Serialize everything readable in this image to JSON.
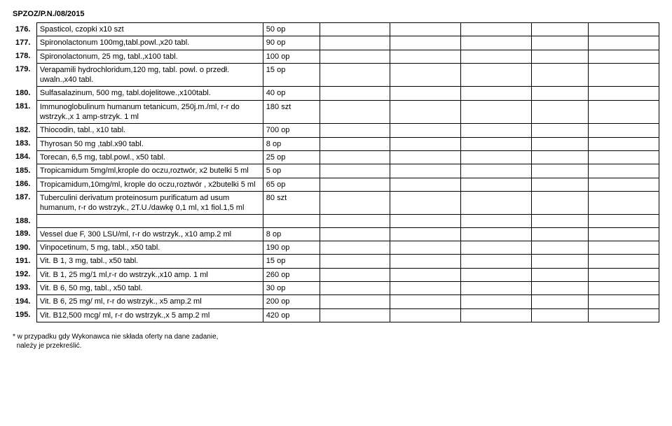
{
  "header": "SPZOZ/P.N./08/2015",
  "footnote_l1": "* w przypadku gdy Wykonawca nie składa oferty na dane zadanie,",
  "footnote_l2": "należy je przekreślić.",
  "rows": [
    {
      "num": "176.",
      "desc": "Spasticol, czopki x10 szt",
      "qty": "50 op"
    },
    {
      "num": "177.",
      "desc": "Spironolactonum 100mg,tabl.powl.,x20 tabl.",
      "qty": "90 op"
    },
    {
      "num": "178.",
      "desc": "Spironolactonum, 25 mg, tabl.,x100 tabl.",
      "qty": "100 op"
    },
    {
      "num": "179.",
      "desc": "Verapamili hydrochloridum,120 mg, tabl. powl. o przedł. uwaln.,x40 tabl.",
      "qty": "15 op"
    },
    {
      "num": "180.",
      "desc": "Sulfasalazinum, 500 mg, tabl.dojelitowe.,x100tabl.",
      "qty": "40 op"
    },
    {
      "num": "181.",
      "desc": "Immunoglobulinum humanum tetanicum, 250j.m./ml, r-r do wstrzyk.,x 1 amp-strzyk. 1 ml",
      "qty": "180 szt"
    },
    {
      "num": "182.",
      "desc": "Thiocodin, tabl., x10 tabl.",
      "qty": "700 op"
    },
    {
      "num": "183.",
      "desc": "Thyrosan 50 mg ,tabl.x90 tabl.",
      "qty": "8 op"
    },
    {
      "num": "184.",
      "desc": "Torecan, 6,5 mg, tabl.powl., x50 tabl.",
      "qty": "25 op"
    },
    {
      "num": "185.",
      "desc": "Tropicamidum 5mg/ml,krople do oczu,roztwór, x2 butelki 5 ml",
      "qty": "5 op"
    },
    {
      "num": "186.",
      "desc": "Tropicamidum,10mg/ml, krople do oczu,roztwór , x2butelki 5 ml",
      "qty": "65 op"
    },
    {
      "num": "187.",
      "desc": "Tuberculini derivatum proteinosum purificatum ad usum humanum, r-r do wstrzyk., 2T.U./dawkę 0,1 ml, x1 fiol.1,5 ml",
      "qty": "80 szt"
    },
    {
      "num": "188.",
      "desc": "",
      "qty": ""
    },
    {
      "num": "189.",
      "desc": "Vessel due F, 300 LSU/ml, r-r do wstrzyk., x10 amp.2 ml",
      "qty": "8 op"
    },
    {
      "num": "190.",
      "desc": "Vinpocetinum, 5 mg, tabl., x50 tabl.",
      "qty": "190 op"
    },
    {
      "num": "191.",
      "desc": "Vit. B 1, 3 mg, tabl., x50 tabl.",
      "qty": "15 op"
    },
    {
      "num": "192.",
      "desc": "Vit. B 1, 25 mg/1 ml,r-r do wstrzyk.,x10 amp. 1 ml",
      "qty": "260 op"
    },
    {
      "num": "193.",
      "desc": "Vit. B 6, 50 mg, tabl., x50 tabl.",
      "qty": "30 op"
    },
    {
      "num": "194.",
      "desc": "Vit. B 6, 25 mg/ ml, r-r do wstrzyk., x5 amp.2 ml",
      "qty": "200 op"
    },
    {
      "num": "195.",
      "desc": "Vit. B12,500 mcg/ ml, r-r do wstrzyk.,x 5 amp.2 ml",
      "qty": "420 op"
    }
  ]
}
